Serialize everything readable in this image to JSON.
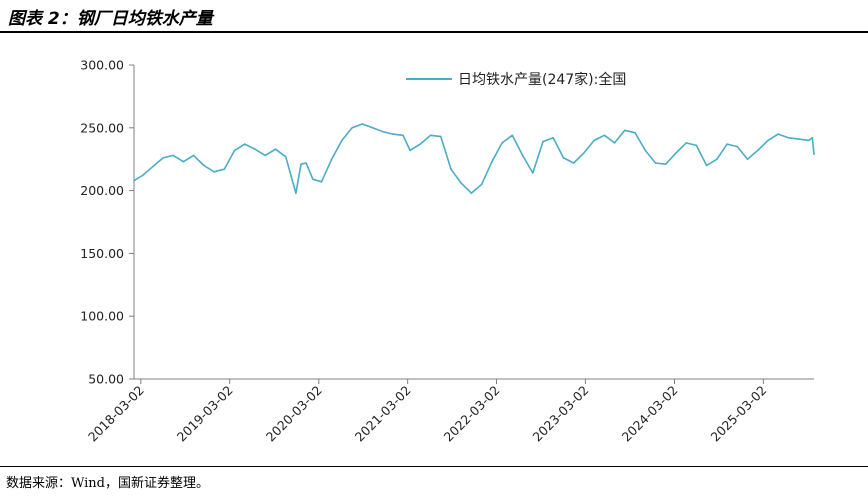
{
  "figure": {
    "title": "图表 2：钢厂日均铁水产量",
    "source": "数据来源：Wind，国新证券整理。"
  },
  "colors": {
    "line": "#4bacc6",
    "axis": "#808080"
  },
  "chart_data": {
    "type": "line",
    "title": "",
    "xlabel": "",
    "ylabel": "",
    "ylim": [
      50,
      300
    ],
    "yticks": [
      "300.00",
      "250.00",
      "200.00",
      "150.00",
      "100.00",
      "50.00"
    ],
    "xlim": [
      "2018-02-02",
      "2025-09-26"
    ],
    "xticks": [
      "2018-03-02",
      "2019-03-02",
      "2020-03-02",
      "2021-03-02",
      "2022-03-02",
      "2023-03-02",
      "2024-03-02",
      "2025-03-02"
    ],
    "grid": false,
    "legend": "top-center",
    "series": [
      {
        "name": "日均铁水产量(247家):全国",
        "x": [
          "2018-02-02",
          "2018-03-09",
          "2018-04-20",
          "2018-06-01",
          "2018-07-13",
          "2018-08-24",
          "2018-10-05",
          "2018-11-16",
          "2018-12-28",
          "2019-02-08",
          "2019-03-22",
          "2019-05-03",
          "2019-06-14",
          "2019-07-26",
          "2019-09-06",
          "2019-10-18",
          "2019-11-29",
          "2019-12-20",
          "2020-01-10",
          "2020-02-07",
          "2020-03-13",
          "2020-04-24",
          "2020-06-05",
          "2020-07-17",
          "2020-08-28",
          "2020-10-09",
          "2020-11-20",
          "2020-12-31",
          "2021-02-11",
          "2021-03-12",
          "2021-04-23",
          "2021-06-04",
          "2021-07-16",
          "2021-08-27",
          "2021-10-08",
          "2021-11-19",
          "2021-12-31",
          "2022-02-11",
          "2022-03-25",
          "2022-05-06",
          "2022-06-17",
          "2022-07-29",
          "2022-09-09",
          "2022-10-21",
          "2022-12-02",
          "2023-01-13",
          "2023-02-24",
          "2023-04-07",
          "2023-05-19",
          "2023-06-30",
          "2023-08-11",
          "2023-09-22",
          "2023-11-03",
          "2023-12-15",
          "2024-01-26",
          "2024-03-08",
          "2024-04-19",
          "2024-05-31",
          "2024-07-12",
          "2024-08-23",
          "2024-10-04",
          "2024-11-15",
          "2024-12-27",
          "2025-02-07",
          "2025-03-21",
          "2025-05-02",
          "2025-06-13",
          "2025-07-25",
          "2025-09-05",
          "2025-09-19",
          "2025-09-26"
        ],
        "values": [
          208,
          212,
          219,
          226,
          228,
          223,
          228,
          220,
          215,
          217,
          232,
          237,
          233,
          228,
          233,
          227,
          198,
          221,
          222,
          209,
          207,
          225,
          240,
          250,
          253,
          250,
          247,
          245,
          244,
          232,
          237,
          244,
          243,
          217,
          206,
          198,
          205,
          223,
          238,
          244,
          228,
          214,
          239,
          242,
          226,
          222,
          230,
          240,
          244,
          238,
          248,
          246,
          232,
          222,
          221,
          230,
          238,
          236,
          220,
          225,
          237,
          235,
          225,
          232,
          240,
          245,
          242,
          241,
          240,
          242,
          229
        ]
      }
    ]
  }
}
